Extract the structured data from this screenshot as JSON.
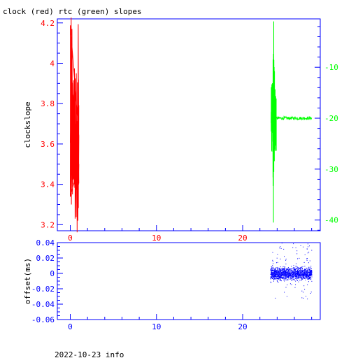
{
  "chart_data": [
    {
      "type": "line",
      "title": "clock (red) rtc (green) slopes",
      "ylabel": "clockslope",
      "xlim": [
        -1.5,
        29
      ],
      "x_ticks": [
        0,
        10,
        20
      ],
      "ylim_left": [
        3.17,
        4.22
      ],
      "left_ticks": [
        "3.2",
        "3.4",
        "3.6",
        "3.8",
        "4",
        "4.2"
      ],
      "ylim_right": [
        -42.1,
        -0.5
      ],
      "right_ticks": [
        "-10",
        "-20",
        "-30",
        "-40"
      ],
      "grid": false,
      "colors": {
        "left_axis": "#ff0000",
        "right_axis": "#00ff00",
        "frame": "#0000ff"
      },
      "series": [
        {
          "axis": "left",
          "color": "#ff0000",
          "x_range": [
            0.0,
            1.0
          ],
          "approx_y_range": [
            3.22,
            4.17
          ],
          "sample_y": [
            3.6,
            3.35,
            3.7,
            3.3,
            3.95,
            3.45,
            4.17,
            3.4,
            3.8,
            3.55,
            3.9,
            3.5,
            3.75,
            3.4,
            3.65,
            3.85,
            3.45,
            3.6,
            3.7,
            3.5,
            3.95,
            3.55,
            3.6,
            3.4,
            3.7,
            3.22,
            3.6,
            3.45,
            3.5
          ]
        },
        {
          "axis": "right",
          "color": "#00ff00",
          "x_range": [
            23.3,
            28.0
          ],
          "approx_y_range": [
            -40.5,
            -1.0
          ],
          "steady_value": -20
        }
      ]
    },
    {
      "type": "scatter",
      "ylabel": "offset(ms)",
      "xlim": [
        -1.5,
        29
      ],
      "x_ticks": [
        0,
        10,
        20
      ],
      "ylim": [
        -0.06,
        0.04
      ],
      "y_ticks": [
        "0.04",
        "0.02",
        "0",
        "-0.02",
        "-0.04",
        "-0.06"
      ],
      "grid": false,
      "colors": {
        "points": "#0000ff",
        "axis": "#0000ff"
      },
      "series": [
        {
          "color": "#0000ff",
          "x_range": [
            23.2,
            28.0
          ],
          "approx_y_range": [
            -0.055,
            0.04
          ],
          "typical_spread": [
            -0.012,
            0.012
          ]
        }
      ]
    }
  ],
  "footer": {
    "text": "2022-10-23 info"
  }
}
